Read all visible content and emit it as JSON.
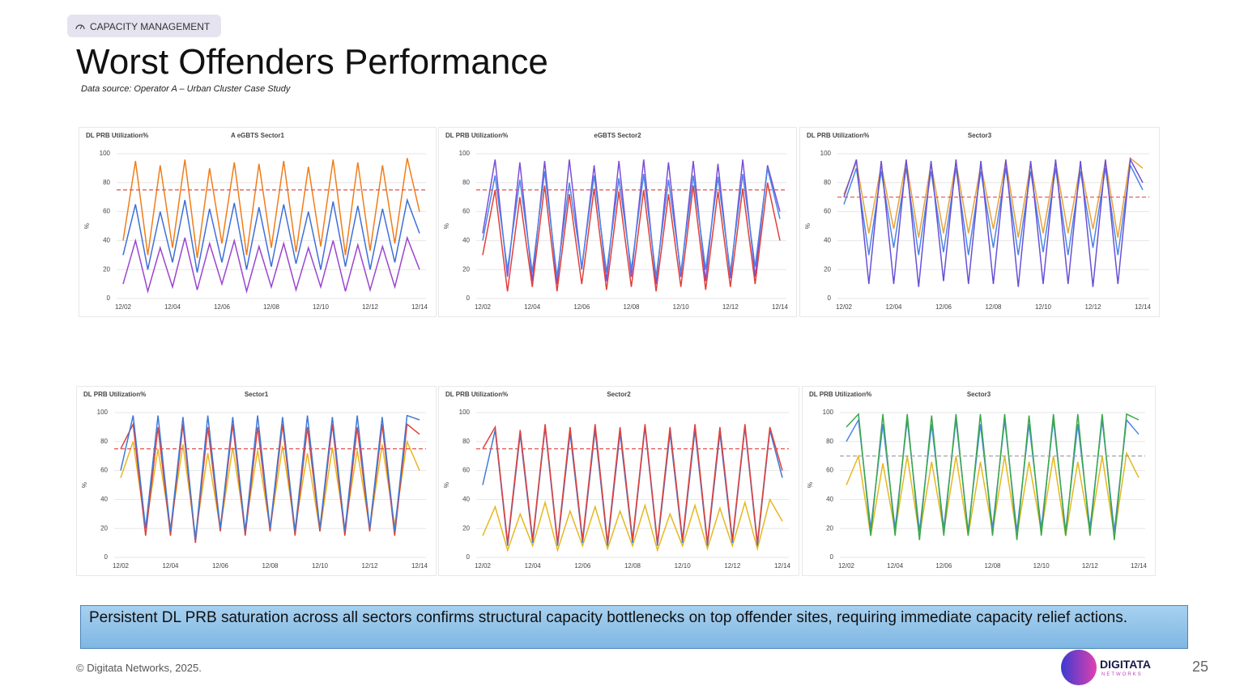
{
  "header": {
    "badge": "CAPACITY MANAGEMENT",
    "title": "Worst Offenders Performance",
    "source": "Data source: Operator A – Urban Cluster Case Study"
  },
  "chart_data": [
    {
      "type": "line",
      "title": "DL PRB Utilization%",
      "subtitle": "A eGBTS Sector1",
      "ylabel": "%",
      "categories": [
        "12/02",
        null,
        null,
        null,
        "12/04",
        null,
        null,
        null,
        "12/06",
        null,
        null,
        null,
        "12/08",
        null,
        null,
        null,
        "12/10",
        null,
        null,
        null,
        "12/12",
        null,
        null,
        null,
        "12/14"
      ],
      "ylim": [
        0,
        100
      ],
      "yticks": [
        0,
        20,
        40,
        60,
        80,
        100
      ],
      "grid": true,
      "threshold": 75,
      "threshold_color": "#e05050",
      "series": [
        {
          "color": "#f07d1a",
          "values": [
            40,
            95,
            30,
            92,
            35,
            96,
            28,
            90,
            38,
            94,
            30,
            93,
            35,
            95,
            32,
            91,
            36,
            96,
            30,
            94,
            33,
            92,
            38,
            97,
            60
          ]
        },
        {
          "color": "#3f6fd8",
          "values": [
            30,
            65,
            20,
            60,
            25,
            68,
            18,
            62,
            25,
            66,
            20,
            63,
            22,
            65,
            24,
            60,
            20,
            67,
            22,
            64,
            20,
            62,
            25,
            68,
            45
          ]
        },
        {
          "color": "#9b45d0",
          "values": [
            10,
            40,
            5,
            35,
            8,
            42,
            6,
            38,
            10,
            40,
            5,
            36,
            8,
            38,
            6,
            35,
            8,
            40,
            5,
            37,
            6,
            36,
            8,
            42,
            20
          ]
        }
      ]
    },
    {
      "type": "line",
      "title": "DL PRB Utilization%",
      "subtitle": "eGBTS Sector2",
      "ylabel": "%",
      "categories": [
        "12/02",
        null,
        null,
        null,
        "12/04",
        null,
        null,
        null,
        "12/06",
        null,
        null,
        null,
        "12/08",
        null,
        null,
        null,
        "12/10",
        null,
        null,
        null,
        "12/12",
        null,
        null,
        null,
        "12/14"
      ],
      "ylim": [
        0,
        100
      ],
      "yticks": [
        0,
        20,
        40,
        60,
        80,
        100
      ],
      "grid": true,
      "threshold": 75,
      "threshold_color": "#e05050",
      "series": [
        {
          "color": "#7a4fd6",
          "values": [
            45,
            96,
            15,
            94,
            12,
            95,
            10,
            96,
            20,
            92,
            12,
            95,
            15,
            96,
            10,
            94,
            15,
            95,
            12,
            93,
            14,
            96,
            15,
            92,
            60
          ]
        },
        {
          "color": "#4a86e8",
          "values": [
            40,
            85,
            20,
            82,
            18,
            88,
            15,
            80,
            22,
            85,
            18,
            83,
            20,
            86,
            15,
            82,
            18,
            85,
            20,
            84,
            18,
            86,
            22,
            90,
            55
          ]
        },
        {
          "color": "#e0403a",
          "values": [
            30,
            75,
            5,
            70,
            8,
            78,
            5,
            72,
            10,
            76,
            6,
            74,
            8,
            75,
            5,
            72,
            8,
            78,
            6,
            74,
            8,
            76,
            10,
            80,
            40
          ]
        }
      ]
    },
    {
      "type": "line",
      "title": "DL PRB Utilization%",
      "subtitle": "Sector3",
      "ylabel": "%",
      "categories": [
        "12/02",
        null,
        null,
        null,
        "12/04",
        null,
        null,
        null,
        "12/06",
        null,
        null,
        null,
        "12/08",
        null,
        null,
        null,
        "12/10",
        null,
        null,
        null,
        "12/12",
        null,
        null,
        null,
        "12/14"
      ],
      "ylim": [
        0,
        100
      ],
      "yticks": [
        0,
        20,
        40,
        60,
        80,
        100
      ],
      "grid": true,
      "threshold": 70,
      "threshold_color": "#e05050",
      "series": [
        {
          "color": "#e9a23b",
          "values": [
            72,
            94,
            45,
            92,
            48,
            95,
            42,
            93,
            45,
            94,
            45,
            92,
            48,
            95,
            42,
            93,
            45,
            94,
            45,
            92,
            48,
            95,
            42,
            97,
            90
          ]
        },
        {
          "color": "#4a86e8",
          "values": [
            65,
            90,
            30,
            88,
            35,
            90,
            30,
            88,
            32,
            90,
            30,
            88,
            35,
            90,
            30,
            88,
            32,
            90,
            30,
            88,
            35,
            90,
            30,
            92,
            75
          ]
        },
        {
          "color": "#6a4fd6",
          "values": [
            70,
            96,
            10,
            95,
            10,
            96,
            8,
            95,
            12,
            96,
            10,
            95,
            10,
            96,
            8,
            95,
            10,
            96,
            10,
            95,
            8,
            96,
            10,
            96,
            80
          ]
        }
      ]
    },
    {
      "type": "line",
      "title": "DL PRB Utilization%",
      "subtitle": "Sector1",
      "ylabel": "%",
      "categories": [
        "12/02",
        null,
        null,
        null,
        "12/04",
        null,
        null,
        null,
        "12/06",
        null,
        null,
        null,
        "12/08",
        null,
        null,
        null,
        "12/10",
        null,
        null,
        null,
        "12/12",
        null,
        null,
        null,
        "12/14"
      ],
      "ylim": [
        0,
        100
      ],
      "yticks": [
        0,
        20,
        40,
        60,
        80,
        100
      ],
      "grid": true,
      "threshold": 75,
      "threshold_color": "#e05050",
      "series": [
        {
          "color": "#e6b820",
          "values": [
            55,
            80,
            20,
            75,
            20,
            78,
            15,
            72,
            20,
            76,
            20,
            74,
            20,
            77,
            20,
            72,
            18,
            76,
            20,
            74,
            20,
            78,
            22,
            80,
            60
          ]
        },
        {
          "color": "#e0403a",
          "values": [
            75,
            92,
            15,
            90,
            15,
            92,
            10,
            90,
            18,
            92,
            15,
            90,
            18,
            92,
            15,
            90,
            18,
            92,
            15,
            90,
            18,
            92,
            15,
            92,
            85
          ]
        },
        {
          "color": "#3f7ad8",
          "values": [
            60,
            98,
            20,
            98,
            18,
            97,
            12,
            98,
            20,
            97,
            18,
            98,
            20,
            97,
            18,
            98,
            20,
            97,
            18,
            98,
            20,
            97,
            18,
            98,
            95
          ]
        }
      ]
    },
    {
      "type": "line",
      "title": "DL PRB Utilization%",
      "subtitle": "Sector2",
      "ylabel": "%",
      "categories": [
        "12/02",
        null,
        null,
        null,
        "12/04",
        null,
        null,
        null,
        "12/06",
        null,
        null,
        null,
        "12/08",
        null,
        null,
        null,
        "12/10",
        null,
        null,
        null,
        "12/12",
        null,
        null,
        null,
        "12/14"
      ],
      "ylim": [
        0,
        100
      ],
      "yticks": [
        0,
        20,
        40,
        60,
        80,
        100
      ],
      "grid": true,
      "threshold": 75,
      "threshold_color": "#e05050",
      "series": [
        {
          "color": "#e6b820",
          "values": [
            15,
            35,
            5,
            30,
            8,
            38,
            5,
            32,
            8,
            35,
            6,
            32,
            8,
            36,
            5,
            30,
            8,
            36,
            6,
            34,
            8,
            38,
            6,
            40,
            25
          ]
        },
        {
          "color": "#3f7ad8",
          "values": [
            50,
            88,
            8,
            85,
            10,
            90,
            8,
            86,
            10,
            88,
            8,
            86,
            10,
            90,
            8,
            86,
            10,
            88,
            8,
            86,
            10,
            90,
            8,
            88,
            55
          ]
        },
        {
          "color": "#e0403a",
          "values": [
            75,
            90,
            10,
            88,
            12,
            92,
            10,
            90,
            12,
            92,
            10,
            90,
            12,
            92,
            10,
            90,
            12,
            92,
            10,
            90,
            12,
            92,
            10,
            90,
            60
          ]
        }
      ]
    },
    {
      "type": "line",
      "title": "DL PRB Utilization%",
      "subtitle": "Sector3",
      "ylabel": "%",
      "categories": [
        "12/02",
        null,
        null,
        null,
        "12/04",
        null,
        null,
        null,
        "12/06",
        null,
        null,
        null,
        "12/08",
        null,
        null,
        null,
        "12/10",
        null,
        null,
        null,
        "12/12",
        null,
        null,
        null,
        "12/14"
      ],
      "ylim": [
        0,
        100
      ],
      "yticks": [
        0,
        20,
        40,
        60,
        80,
        100
      ],
      "grid": true,
      "threshold": 70,
      "threshold_color": "#999999",
      "series": [
        {
          "color": "#e6b820",
          "values": [
            50,
            70,
            15,
            65,
            18,
            70,
            15,
            66,
            18,
            70,
            15,
            66,
            18,
            70,
            15,
            66,
            18,
            70,
            15,
            66,
            18,
            70,
            15,
            72,
            55
          ]
        },
        {
          "color": "#4a86e8",
          "values": [
            80,
            95,
            20,
            92,
            20,
            95,
            18,
            92,
            20,
            95,
            18,
            92,
            20,
            95,
            18,
            92,
            20,
            95,
            18,
            92,
            20,
            95,
            18,
            95,
            85
          ]
        },
        {
          "color": "#3aa84a",
          "values": [
            90,
            99,
            15,
            99,
            15,
            99,
            12,
            98,
            15,
            99,
            15,
            99,
            15,
            99,
            12,
            98,
            15,
            99,
            15,
            99,
            15,
            99,
            12,
            99,
            95
          ]
        }
      ]
    }
  ],
  "callout": "Persistent DL PRB saturation across all sectors confirms structural capacity bottlenecks on top offender sites, requiring immediate capacity relief actions.",
  "footer": {
    "copyright": "© Digitata Networks, 2025.",
    "page": "25",
    "logo": {
      "name": "DIGITATA",
      "sub": "NETWORKS"
    }
  }
}
